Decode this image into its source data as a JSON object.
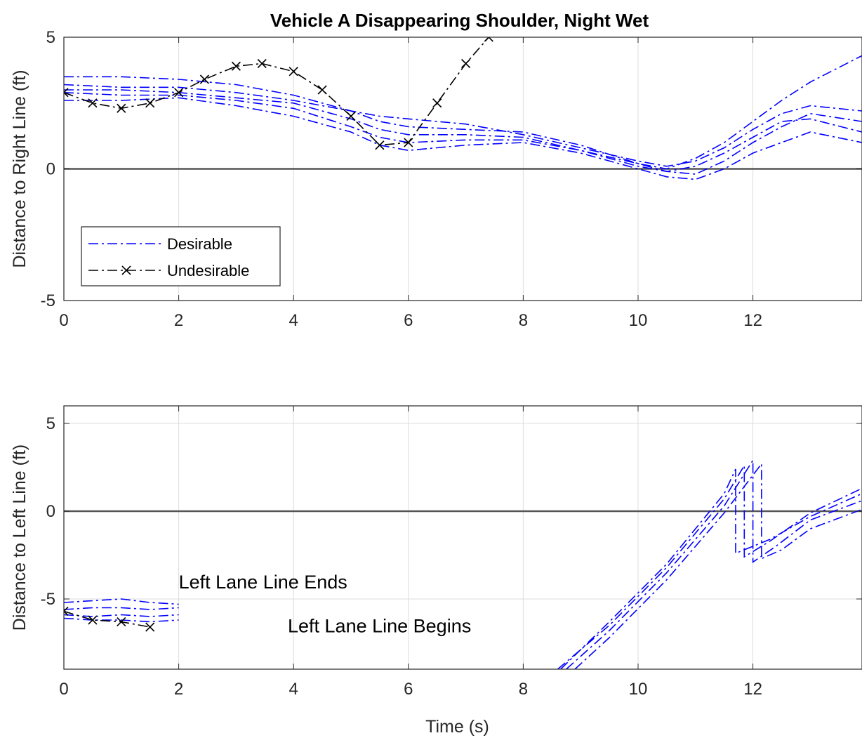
{
  "chart_data": [
    {
      "type": "line",
      "title": "Vehicle A Disappearing Shoulder, Night Wet",
      "xlabel": "",
      "ylabel": "Distance to Right Line (ft)",
      "xlim": [
        0,
        13.9
      ],
      "ylim": [
        -5,
        5
      ],
      "xticks": [
        0,
        2,
        4,
        6,
        8,
        10,
        12
      ],
      "yticks": [
        -5,
        0,
        5
      ],
      "grid": true,
      "legend": {
        "placement": "lower-left",
        "entries": [
          "Desirable",
          "Undesirable"
        ]
      },
      "reference_line_y": 0,
      "series": [
        {
          "name": "Desirable",
          "group": "Desirable",
          "color": "#0000ff",
          "style": "dash-dot",
          "x": [
            0,
            1,
            2,
            3,
            4,
            5,
            5.5,
            6,
            7,
            8,
            9,
            10,
            10.5,
            11,
            11.5,
            12,
            12.5,
            13,
            13.9
          ],
          "y": [
            3.2,
            3.1,
            3.1,
            2.9,
            2.6,
            2.2,
            2.0,
            1.9,
            1.7,
            1.3,
            0.8,
            0.3,
            0.1,
            0.3,
            0.8,
            1.5,
            2.1,
            2.4,
            2.2
          ]
        },
        {
          "name": "Desirable",
          "group": "Desirable",
          "color": "#0000ff",
          "style": "dash-dot",
          "x": [
            0,
            1,
            2,
            3,
            4,
            5,
            5.5,
            6,
            7,
            8,
            9,
            10,
            10.5,
            11,
            11.5,
            12,
            12.5,
            13,
            13.9
          ],
          "y": [
            3.5,
            3.5,
            3.4,
            3.2,
            2.8,
            2.2,
            1.8,
            1.6,
            1.5,
            1.4,
            0.9,
            0.2,
            0.0,
            0.4,
            1.0,
            1.8,
            2.6,
            3.3,
            4.3
          ]
        },
        {
          "name": "Desirable",
          "group": "Desirable",
          "color": "#0000ff",
          "style": "dash-dot",
          "x": [
            0,
            1,
            2,
            3,
            4,
            5,
            5.5,
            6,
            7,
            8,
            9,
            10,
            10.5,
            11,
            11.5,
            12,
            12.5,
            13,
            13.9
          ],
          "y": [
            2.9,
            2.8,
            2.8,
            2.6,
            2.3,
            1.6,
            1.2,
            1.0,
            1.1,
            1.1,
            0.7,
            0.2,
            -0.1,
            -0.2,
            0.3,
            1.0,
            1.6,
            2.1,
            1.8
          ]
        },
        {
          "name": "Desirable",
          "group": "Desirable",
          "color": "#0000ff",
          "style": "dash-dot",
          "x": [
            0,
            1,
            2,
            3,
            4,
            5,
            5.5,
            6,
            7,
            8,
            9,
            10,
            10.5,
            11,
            11.5,
            12,
            12.5,
            13,
            13.9
          ],
          "y": [
            2.6,
            2.6,
            2.7,
            2.4,
            2.0,
            1.4,
            0.9,
            0.7,
            0.9,
            1.0,
            0.6,
            0.0,
            -0.3,
            -0.4,
            0.0,
            0.6,
            1.0,
            1.4,
            1.0
          ]
        },
        {
          "name": "Desirable",
          "group": "Desirable",
          "color": "#0000ff",
          "style": "dash-dot",
          "x": [
            0,
            1,
            2,
            3,
            4,
            5,
            5.5,
            6,
            7,
            8,
            9,
            10,
            10.5,
            11,
            11.5,
            12,
            12.5,
            13,
            13.9
          ],
          "y": [
            3.0,
            3.0,
            2.9,
            2.7,
            2.5,
            1.9,
            1.5,
            1.3,
            1.3,
            1.2,
            0.7,
            0.1,
            -0.1,
            0.1,
            0.6,
            1.2,
            1.8,
            1.9,
            1.4
          ]
        },
        {
          "name": "Undesirable",
          "group": "Undesirable",
          "color": "#000000",
          "style": "dash-dot-x",
          "x": [
            0,
            0.5,
            1.0,
            1.5,
            2.0,
            2.45,
            3.0,
            3.45,
            4.0,
            4.5,
            5.0,
            5.5,
            6.0,
            6.5,
            7.0,
            7.4
          ],
          "y": [
            2.9,
            2.5,
            2.3,
            2.5,
            2.9,
            3.4,
            3.9,
            4.0,
            3.7,
            3.0,
            2.0,
            0.9,
            1.0,
            2.5,
            4.0,
            5.0
          ]
        }
      ]
    },
    {
      "type": "line",
      "title": "",
      "xlabel": "Time (s)",
      "ylabel": "Distance to Left Line (ft)",
      "xlim": [
        0,
        13.9
      ],
      "ylim": [
        -9,
        6
      ],
      "xticks": [
        0,
        2,
        4,
        6,
        8,
        10,
        12
      ],
      "yticks": [
        -5,
        0,
        5
      ],
      "grid": true,
      "reference_line_y": 0,
      "annotations": [
        {
          "text": "Left Lane Line Ends",
          "x": 2.0,
          "y": -4.0
        },
        {
          "text": "Left Lane Line Begins",
          "x": 3.9,
          "y": -6.5
        }
      ],
      "series": [
        {
          "name": "Desirable",
          "group": "Desirable",
          "color": "#0000ff",
          "style": "dash-dot",
          "segments": [
            {
              "x": [
                0,
                0.5,
                1.0,
                1.5,
                2.0
              ],
              "y": [
                -5.6,
                -5.5,
                -5.5,
                -5.6,
                -5.5
              ]
            },
            {
              "x": [
                8.6,
                9.5,
                10.5,
                11.5,
                11.85,
                11.85,
                12.3,
                13.0,
                13.9
              ],
              "y": [
                -9,
                -6.5,
                -3.2,
                0.7,
                2.6,
                -2.6,
                -1.7,
                -0.1,
                1.3
              ]
            }
          ]
        },
        {
          "name": "Desirable",
          "group": "Desirable",
          "color": "#0000ff",
          "style": "dash-dot",
          "segments": [
            {
              "x": [
                0,
                0.5,
                1.0,
                1.5,
                2.0
              ],
              "y": [
                -5.2,
                -5.1,
                -5.0,
                -5.2,
                -5.3
              ]
            },
            {
              "x": [
                8.75,
                9.5,
                10.5,
                11.5,
                12.0,
                12.0,
                12.4,
                13.0,
                13.9
              ],
              "y": [
                -9,
                -6.8,
                -3.5,
                0.3,
                2.9,
                -2.9,
                -2.0,
                -0.5,
                0.6
              ]
            }
          ]
        },
        {
          "name": "Desirable",
          "group": "Desirable",
          "color": "#0000ff",
          "style": "dash-dot",
          "segments": [
            {
              "x": [
                0,
                0.5,
                1.0,
                1.5,
                2.0
              ],
              "y": [
                -5.9,
                -6.0,
                -5.9,
                -6.0,
                -5.9
              ]
            },
            {
              "x": [
                8.9,
                9.5,
                10.5,
                11.5,
                12.15,
                12.15,
                12.5,
                13.0,
                13.9
              ],
              "y": [
                -9,
                -7.2,
                -3.9,
                -0.1,
                2.7,
                -2.7,
                -2.2,
                -1.0,
                0.1
              ]
            }
          ]
        },
        {
          "name": "Desirable",
          "group": "Desirable",
          "color": "#0000ff",
          "style": "dash-dot",
          "segments": [
            {
              "x": [
                0,
                0.5,
                1.0,
                1.5,
                2.0
              ],
              "y": [
                -6.1,
                -6.2,
                -6.2,
                -6.3,
                -6.2
              ]
            },
            {
              "x": [
                8.65,
                9.5,
                10.5,
                11.5,
                11.7,
                11.7,
                12.3,
                13.0,
                13.9
              ],
              "y": [
                -9,
                -6.3,
                -3.0,
                1.0,
                2.4,
                -2.4,
                -1.6,
                -0.3,
                1.0
              ]
            }
          ]
        },
        {
          "name": "Undesirable",
          "group": "Undesirable",
          "color": "#000000",
          "style": "dash-dot-x",
          "segments": [
            {
              "x": [
                0,
                0.5,
                1.0,
                1.5
              ],
              "y": [
                -5.7,
                -6.2,
                -6.3,
                -6.6
              ]
            }
          ]
        }
      ]
    }
  ]
}
